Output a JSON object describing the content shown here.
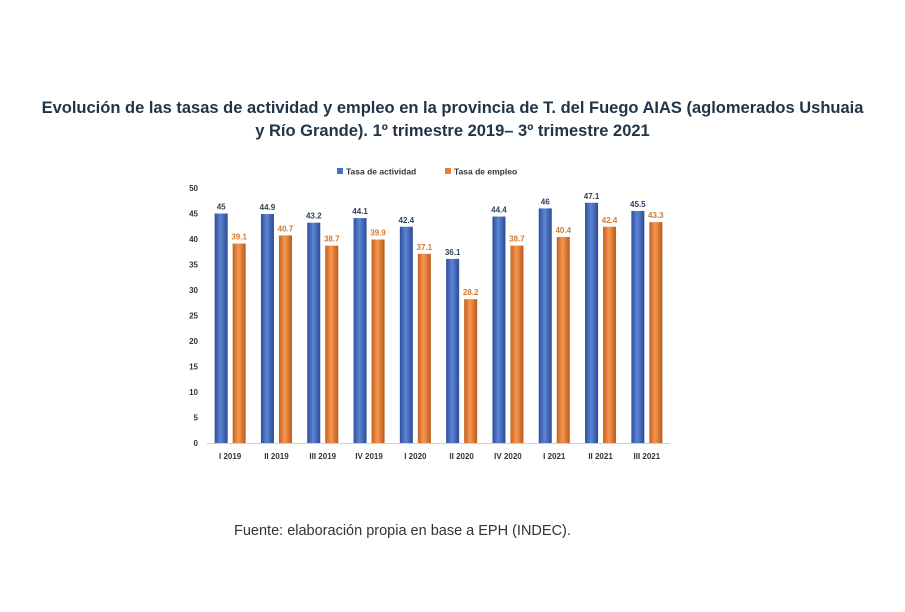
{
  "title": "Evolución de las tasas de actividad y empleo en la provincia de T. del Fuego AIAS (aglomerados Ushuaia y Río Grande). 1º trimestre 2019– 3º trimestre 2021",
  "source": "Fuente: elaboración propia en base a EPH (INDEC).",
  "chart_data": {
    "type": "bar",
    "categories": [
      "I 2019",
      "II 2019",
      "III 2019",
      "IV 2019",
      "I 2020",
      "II 2020",
      "IV 2020",
      "I 2021",
      "II 2021",
      "III 2021"
    ],
    "series": [
      {
        "name": "Tasa de actividad",
        "color": "#4472c4",
        "values": [
          45,
          44.9,
          43.2,
          44.1,
          42.4,
          36.1,
          44.4,
          46,
          47.1,
          45.5
        ]
      },
      {
        "name": "Tasa de empleo",
        "color": "#ed7d31",
        "values": [
          39.1,
          40.7,
          38.7,
          39.9,
          37.1,
          28.2,
          38.7,
          40.4,
          42.4,
          43.3
        ]
      }
    ],
    "ylim": [
      0,
      50
    ],
    "yticks": [
      0,
      5,
      10,
      15,
      20,
      25,
      30,
      35,
      40,
      45,
      50
    ],
    "legend_position": "top",
    "grid": false
  }
}
